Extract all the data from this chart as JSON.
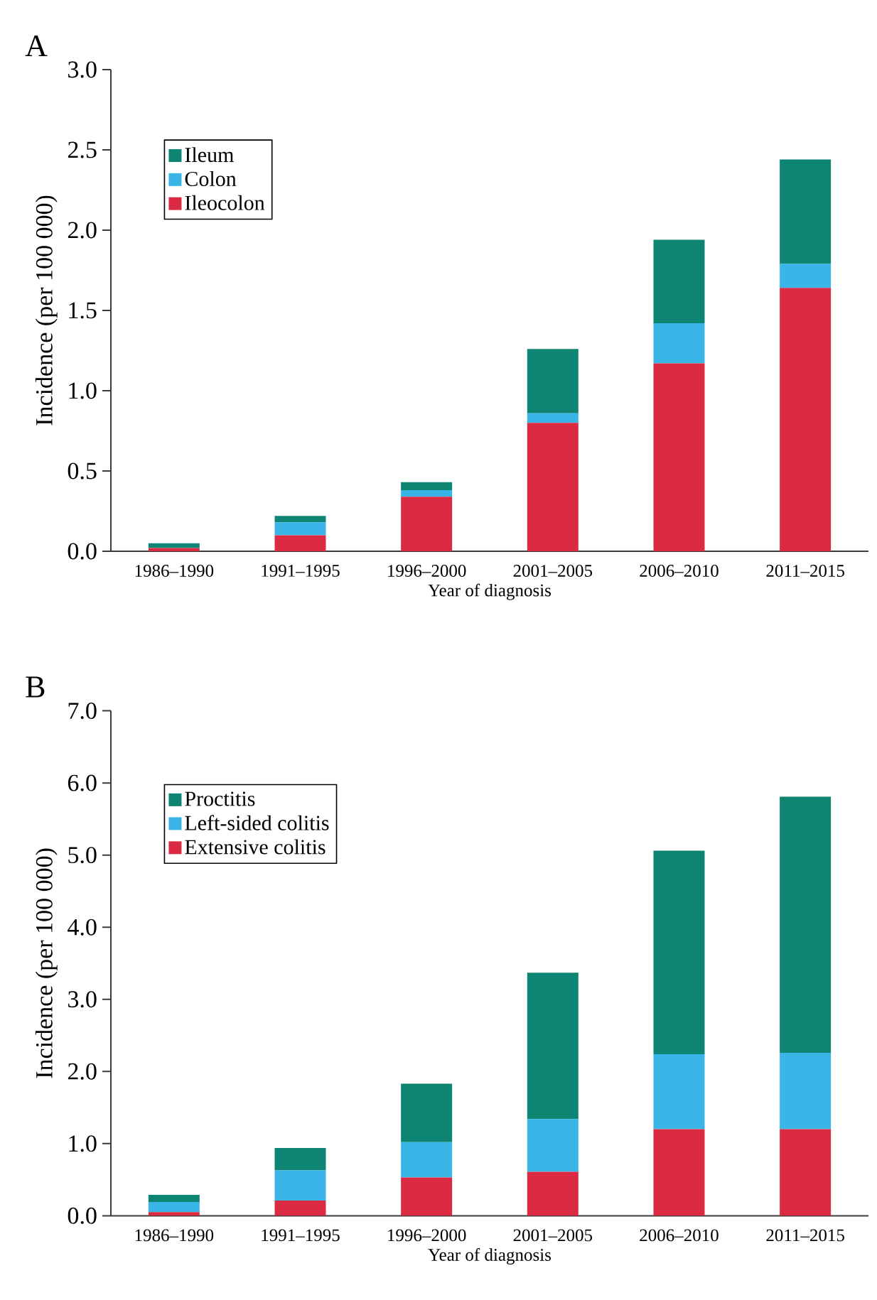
{
  "chart_data": [
    {
      "type": "bar",
      "title": "A",
      "xlabel": "Year of diagnosis",
      "ylabel": "Incidence (per 100 000)",
      "stacked": true,
      "legend": "top left",
      "categories": [
        "1986–1990",
        "1991–1995",
        "1996–2000",
        "2001–2005",
        "2006–2010",
        "2011–2015"
      ],
      "series": [
        {
          "name": "Ileocolon",
          "color": "#db2b42",
          "values": [
            0.02,
            0.1,
            0.34,
            0.8,
            1.17,
            1.64
          ]
        },
        {
          "name": "Colon",
          "color": "#3ab5e8",
          "values": [
            0.0,
            0.08,
            0.04,
            0.06,
            0.25,
            0.15
          ]
        },
        {
          "name": "Ileum",
          "color": "#0e8472",
          "values": [
            0.03,
            0.04,
            0.05,
            0.4,
            0.52,
            0.65
          ]
        }
      ],
      "ylim": [
        0,
        3
      ],
      "yticks": [
        {
          "value": 0,
          "label": "0.0"
        },
        0.5,
        {
          "value": 1,
          "label": "1.0"
        },
        1.5,
        {
          "value": 2,
          "label": "2.0"
        },
        2.5,
        {
          "value": 3,
          "label": "3.0"
        }
      ]
    },
    {
      "type": "bar",
      "title": "B",
      "xlabel": "Year of diagnosis",
      "ylabel": "Incidence (per 100 000)",
      "stacked": true,
      "legend": "top left",
      "categories": [
        "1986–1990",
        "1991–1995",
        "1996–2000",
        "2001–2005",
        "2006–2010",
        "2011–2015"
      ],
      "series": [
        {
          "name": "Extensive colitis",
          "color": "#db2b42",
          "values": [
            0.05,
            0.21,
            0.53,
            0.61,
            1.2,
            1.2
          ]
        },
        {
          "name": "Left-sided colitis",
          "color": "#3ab5e8",
          "values": [
            0.14,
            0.42,
            0.49,
            0.73,
            1.04,
            1.06
          ]
        },
        {
          "name": "Proctitis",
          "color": "#0e8472",
          "values": [
            0.1,
            0.31,
            0.81,
            2.03,
            2.82,
            3.55
          ]
        }
      ],
      "ylim": [
        0,
        7
      ],
      "yticks": [
        {
          "value": 0,
          "label": "0.0"
        },
        {
          "value": 1,
          "label": "1.0"
        },
        {
          "value": 2,
          "label": "2.0"
        },
        {
          "value": 3,
          "label": "3.0"
        },
        {
          "value": 4,
          "label": "4.0"
        },
        {
          "value": 5,
          "label": "5.0"
        },
        {
          "value": 6,
          "label": "6.0"
        },
        {
          "value": 7,
          "label": "7.0"
        }
      ]
    }
  ]
}
